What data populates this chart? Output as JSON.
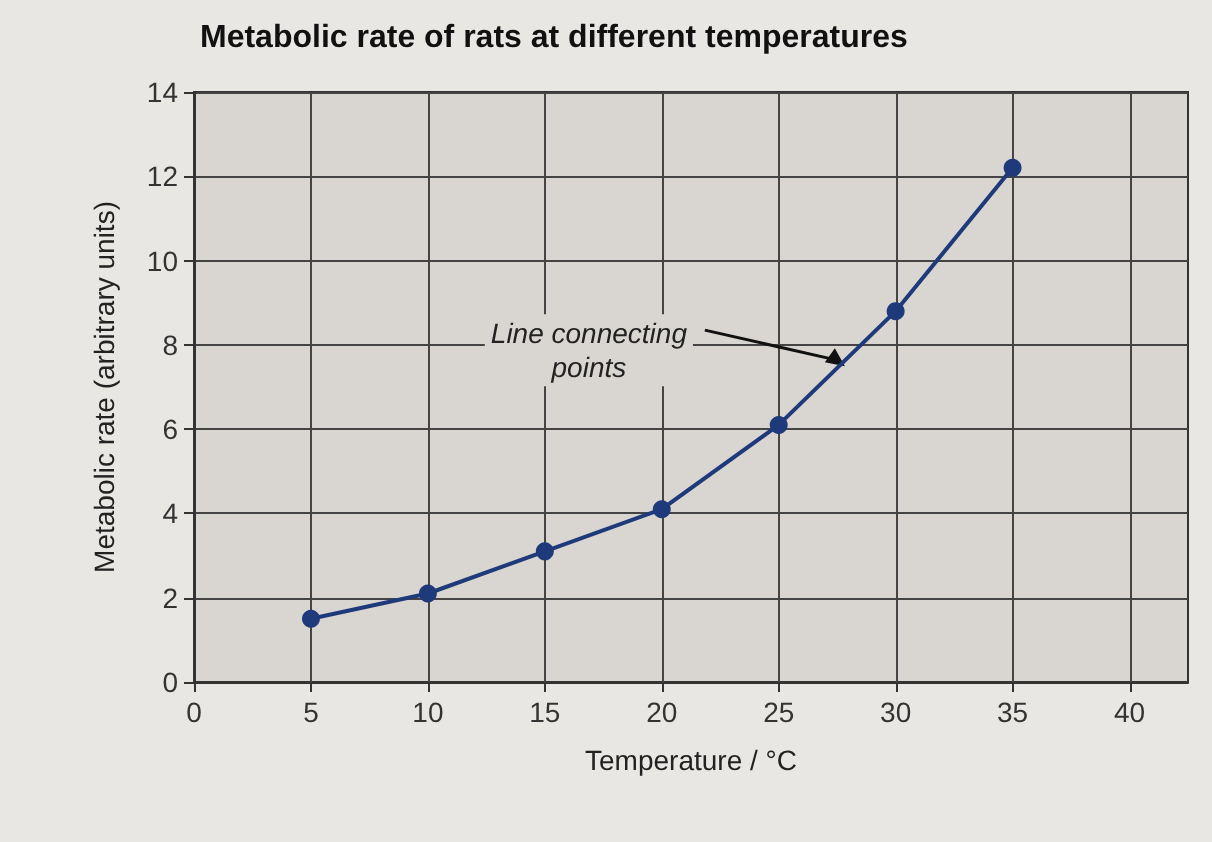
{
  "chart_data": {
    "type": "line",
    "title": "Metabolic rate of rats at different temperatures",
    "xlabel": "Temperature / °C",
    "ylabel": "Metabolic rate (arbitrary units)",
    "x": [
      5,
      10,
      15,
      20,
      25,
      30,
      35
    ],
    "series": [
      {
        "color": "#1f3a7a",
        "values": [
          1.5,
          2.1,
          3.1,
          4.1,
          6.1,
          8.8,
          12.2
        ]
      }
    ],
    "xlim": [
      0,
      42.5
    ],
    "xticks": [
      0,
      5,
      10,
      15,
      20,
      25,
      30,
      35,
      40
    ],
    "ylim": [
      0,
      14
    ],
    "yticks": [
      0,
      2,
      4,
      6,
      8,
      10,
      12,
      14
    ],
    "grid": true,
    "marker": "circle",
    "line_style": "solid",
    "annotations": [
      {
        "text": "Line connecting\npoints",
        "x": 28,
        "y": 7.4
      }
    ]
  }
}
